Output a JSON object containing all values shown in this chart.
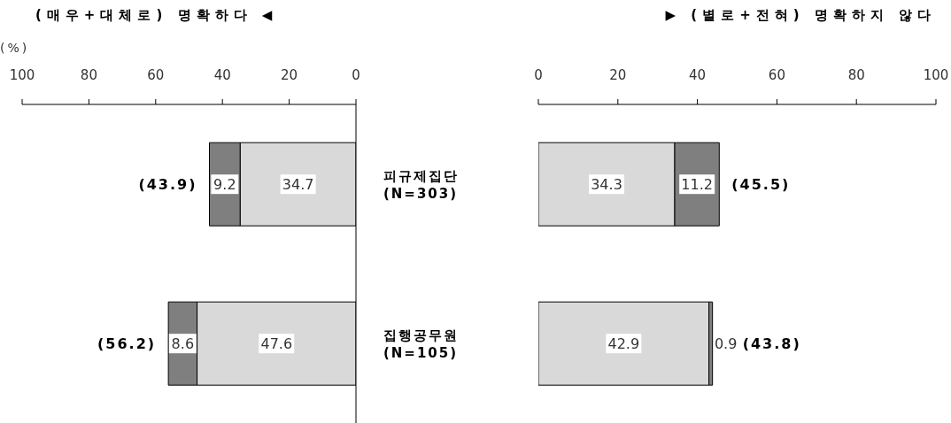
{
  "chart_data": [
    {
      "type": "bar",
      "orientation": "horizontal",
      "stacked": true,
      "title": "(매우+대체로) 명확하다 ◀",
      "xlabel": "(%)",
      "categories": [
        "피규제집단\n(N=303)",
        "집행공무원\n(N=105)"
      ],
      "series": [
        {
          "color": "#d9d9d9",
          "values": [
            34.7,
            47.6
          ]
        },
        {
          "color": "#7f7f7f",
          "values": [
            9.2,
            8.6
          ]
        }
      ],
      "xlim": [
        100,
        0
      ],
      "xticks": [
        100,
        80,
        60,
        40,
        20,
        0
      ],
      "grid": false,
      "legend": false,
      "data_labels": true,
      "totals": [
        "(43.9)",
        "(56.2)"
      ]
    },
    {
      "type": "bar",
      "orientation": "horizontal",
      "stacked": true,
      "title": "▶ (별로+전혀) 명확하지 않다",
      "categories": [
        null,
        null
      ],
      "series": [
        {
          "color": "#d9d9d9",
          "values": [
            34.3,
            42.9
          ]
        },
        {
          "color": "#7f7f7f",
          "values": [
            11.2,
            0.9
          ]
        }
      ],
      "xlim": [
        0,
        100
      ],
      "xticks": [
        0,
        20,
        40,
        60,
        80,
        100
      ],
      "grid": false,
      "legend": false,
      "data_labels": true,
      "totals": [
        "(45.5)",
        "(43.8)"
      ],
      "tick_labels": "x"
    }
  ]
}
